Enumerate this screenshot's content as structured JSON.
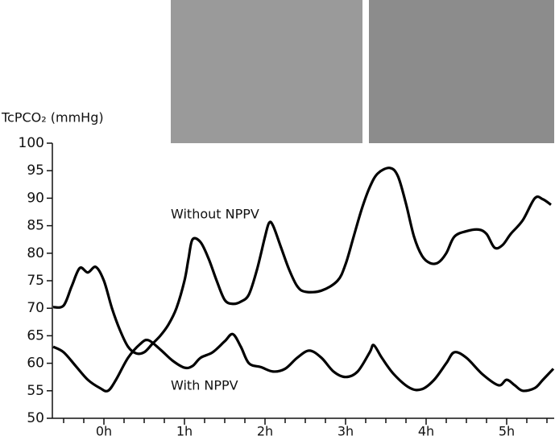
{
  "chart_data": {
    "type": "line",
    "y_axis_label": "TcPCO₂ (mmHg)",
    "annotations": [
      "Without NPPV",
      "With NPPV"
    ],
    "xlim": [
      -0.64,
      5.59
    ],
    "ylim": [
      50,
      100
    ],
    "yticks": [
      50,
      55,
      60,
      65,
      70,
      75,
      80,
      85,
      90,
      95,
      100
    ],
    "xticks": [
      {
        "value": 0,
        "label": "0h"
      },
      {
        "value": 1,
        "label": "1h"
      },
      {
        "value": 2,
        "label": "2h"
      },
      {
        "value": 3,
        "label": "3h"
      },
      {
        "value": 4,
        "label": "4h"
      },
      {
        "value": 5,
        "label": "5h"
      }
    ],
    "xminor_ticks": [
      -0.5,
      -0.25,
      0.25,
      0.5,
      0.75,
      1.25,
      1.5,
      1.75,
      2.25,
      2.5,
      2.75,
      3.25,
      3.5,
      3.75,
      4.25,
      4.5,
      4.75,
      5.25,
      5.5
    ],
    "series": [
      {
        "name": "Without NPPV",
        "color": "#000000",
        "x": [
          -0.63,
          -0.5,
          -0.4,
          -0.3,
          -0.2,
          -0.1,
          0,
          0.1,
          0.2,
          0.3,
          0.4,
          0.5,
          0.6,
          0.7,
          0.8,
          0.9,
          1.0,
          1.05,
          1.1,
          1.2,
          1.3,
          1.4,
          1.5,
          1.6,
          1.7,
          1.8,
          1.9,
          2.0,
          2.05,
          2.1,
          2.2,
          2.3,
          2.4,
          2.5,
          2.7,
          2.9,
          3.0,
          3.1,
          3.2,
          3.3,
          3.4,
          3.55,
          3.65,
          3.75,
          3.85,
          3.95,
          4.05,
          4.15,
          4.25,
          4.35,
          4.5,
          4.65,
          4.75,
          4.85,
          4.95,
          5.05,
          5.2,
          5.35,
          5.45,
          5.55
        ],
        "values": [
          70.2,
          70.5,
          74,
          77.3,
          76.5,
          77.5,
          75,
          70,
          66,
          63,
          61.8,
          62,
          63.5,
          65,
          67,
          70,
          75,
          79,
          82.5,
          82,
          79,
          75,
          71.5,
          70.8,
          71.2,
          72.5,
          77,
          83,
          85.5,
          85,
          81,
          77,
          74,
          73,
          73.2,
          75,
          78,
          83,
          88,
          92,
          94.5,
          95.5,
          94,
          89,
          83,
          79.5,
          78.2,
          78.3,
          80,
          83,
          84,
          84.3,
          83.5,
          81,
          81.5,
          83.5,
          86,
          90,
          89.8,
          88.8
        ]
      },
      {
        "name": "With NPPV",
        "color": "#000000",
        "x": [
          -0.63,
          -0.5,
          -0.35,
          -0.2,
          -0.05,
          0.05,
          0.15,
          0.3,
          0.45,
          0.55,
          0.7,
          0.85,
          1.0,
          1.1,
          1.2,
          1.35,
          1.5,
          1.6,
          1.7,
          1.8,
          1.95,
          2.1,
          2.25,
          2.4,
          2.55,
          2.7,
          2.85,
          3.0,
          3.15,
          3.3,
          3.35,
          3.45,
          3.6,
          3.8,
          3.95,
          4.1,
          4.25,
          4.35,
          4.5,
          4.7,
          4.9,
          5.0,
          5.1,
          5.2,
          5.35,
          5.45,
          5.58
        ],
        "values": [
          63,
          62,
          59.5,
          57,
          55.5,
          55,
          57,
          61,
          63.5,
          64.2,
          62.5,
          60.5,
          59.2,
          59.5,
          61,
          62,
          64,
          65.3,
          63,
          60,
          59.3,
          58.5,
          59,
          61,
          62.3,
          61,
          58.5,
          57.5,
          58.5,
          62,
          63.3,
          61,
          58,
          55.5,
          55.3,
          57,
          60,
          62,
          61,
          58,
          56,
          57,
          56,
          55,
          55.5,
          57,
          59
        ]
      }
    ]
  }
}
